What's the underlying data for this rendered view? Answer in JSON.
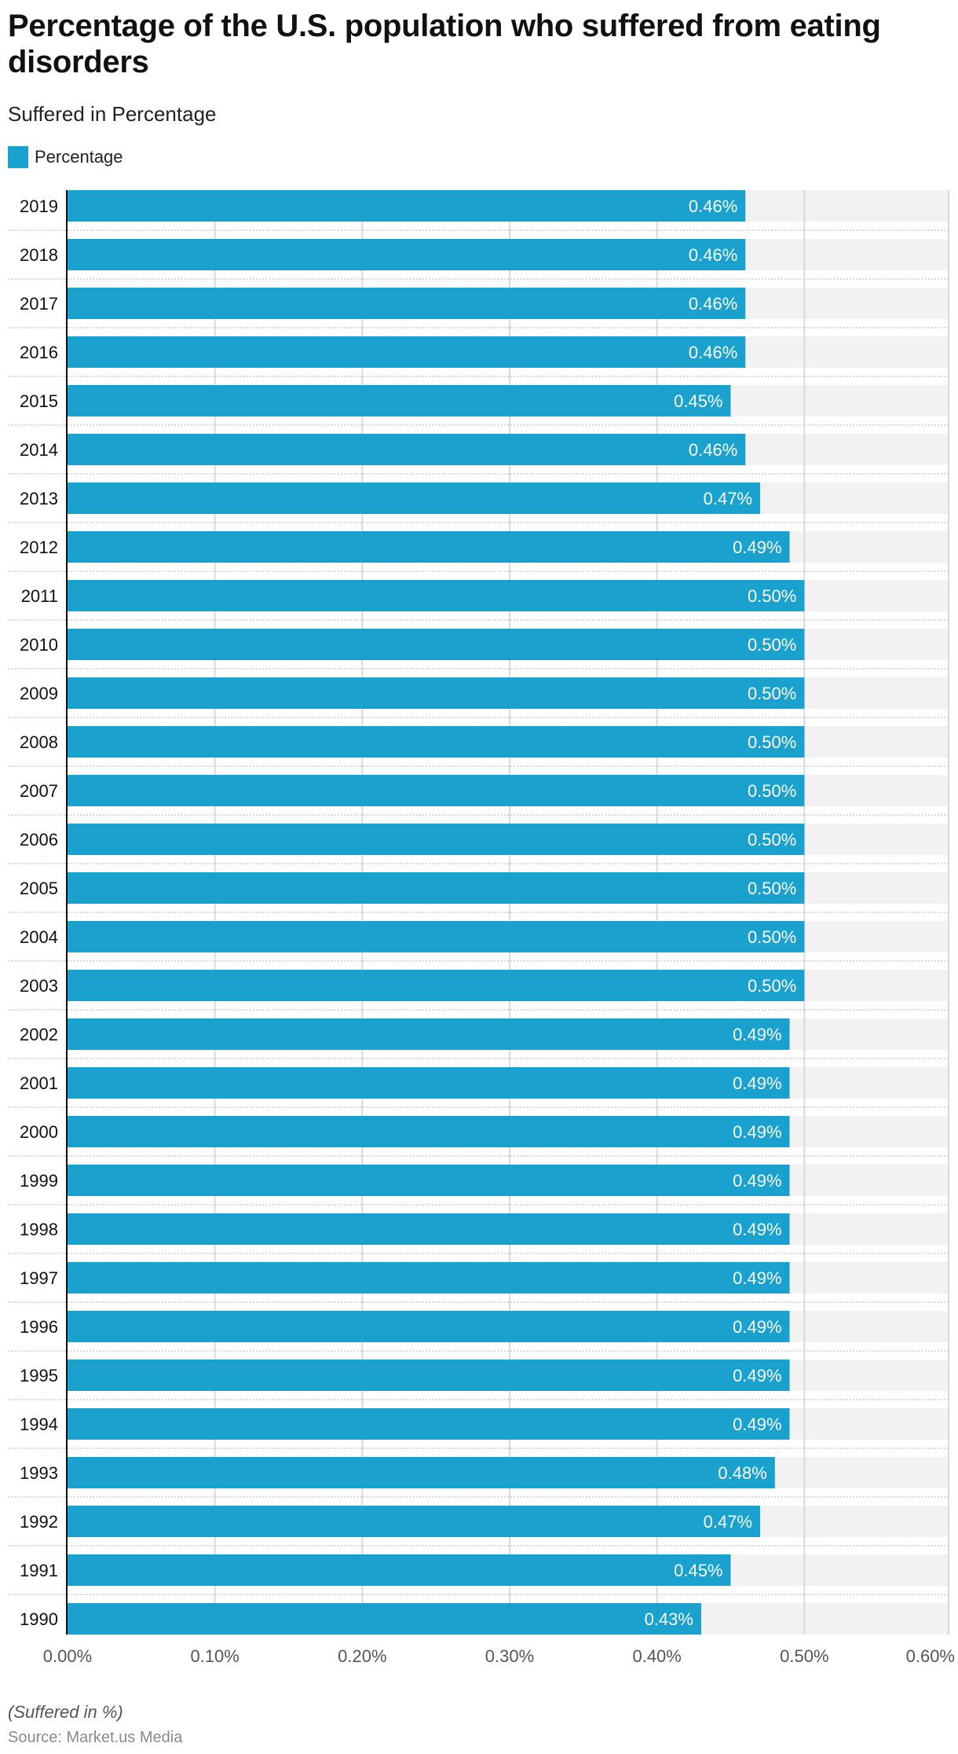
{
  "header": {
    "title": "Percentage of the U.S. population who suffered from eating disorders",
    "subtitle": "Suffered in Percentage"
  },
  "legend": {
    "items": [
      {
        "label": "Percentage",
        "color": "#1aa1cd"
      }
    ]
  },
  "footer": {
    "note": "(Suffered in %)",
    "source": "Source: Market.us Media"
  },
  "colors": {
    "bar": "#1aa1cd",
    "track": "#f2f2f2",
    "grid": "#d9d9d9",
    "axis": "#111111"
  },
  "chart_data": {
    "type": "bar",
    "orientation": "horizontal",
    "title": "Percentage of the U.S. population who suffered from eating disorders",
    "subtitle": "Suffered in Percentage",
    "xlabel": "",
    "ylabel": "",
    "unit": "%",
    "xlim": [
      0,
      0.6
    ],
    "xticks": [
      0,
      0.1,
      0.2,
      0.3,
      0.4,
      0.5,
      0.6
    ],
    "xtick_labels": [
      "0.00%",
      "0.10%",
      "0.20%",
      "0.30%",
      "0.40%",
      "0.50%",
      "0.60%"
    ],
    "grid": true,
    "legend_position": "top-left",
    "categories": [
      "2019",
      "2018",
      "2017",
      "2016",
      "2015",
      "2014",
      "2013",
      "2012",
      "2011",
      "2010",
      "2009",
      "2008",
      "2007",
      "2006",
      "2005",
      "2004",
      "2003",
      "2002",
      "2001",
      "2000",
      "1999",
      "1998",
      "1997",
      "1996",
      "1995",
      "1994",
      "1993",
      "1992",
      "1991",
      "1990"
    ],
    "series": [
      {
        "name": "Percentage",
        "values": [
          0.46,
          0.46,
          0.46,
          0.46,
          0.45,
          0.46,
          0.47,
          0.49,
          0.5,
          0.5,
          0.5,
          0.5,
          0.5,
          0.5,
          0.5,
          0.5,
          0.5,
          0.49,
          0.49,
          0.49,
          0.49,
          0.49,
          0.49,
          0.49,
          0.49,
          0.49,
          0.48,
          0.47,
          0.45,
          0.43
        ],
        "labels": [
          "0.46%",
          "0.46%",
          "0.46%",
          "0.46%",
          "0.45%",
          "0.46%",
          "0.47%",
          "0.49%",
          "0.50%",
          "0.50%",
          "0.50%",
          "0.50%",
          "0.50%",
          "0.50%",
          "0.50%",
          "0.50%",
          "0.50%",
          "0.49%",
          "0.49%",
          "0.49%",
          "0.49%",
          "0.49%",
          "0.49%",
          "0.49%",
          "0.49%",
          "0.49%",
          "0.48%",
          "0.47%",
          "0.45%",
          "0.43%"
        ]
      }
    ]
  }
}
